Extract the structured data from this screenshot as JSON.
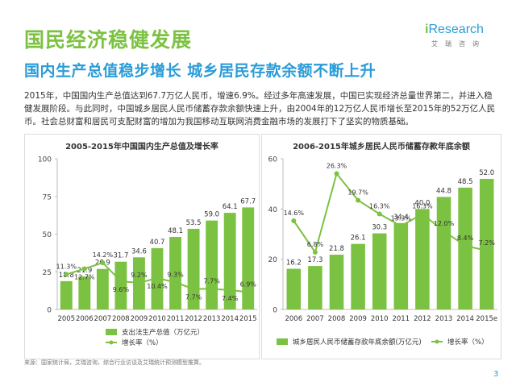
{
  "header": {
    "title": "国民经济稳健发展",
    "subtitle": "国内生产总值稳步增长 城乡居民存款余额不断上升"
  },
  "brand": {
    "logo_text": "iResearch",
    "logo_cn": "艾瑞咨询"
  },
  "intro_text": "2015年，中国国内生产总值达到67.7万亿人民币，增速6.9%。经过多年高速发展，中国已实现经济总量世界第二，并进入稳健发展阶段。与此同时，中国城乡居民人民币储蓄存款余额快速上升，由2004年的12万亿人民币增长至2015年的52万亿人民币。社会总财富和居民可支配财富的增加为我国移动互联网消费金融市场的发展打下了坚实的物质基础。",
  "source_text": "来源：国家统计局，艾瑞咨询，综合行业访谈及艾瑞统计预测模型推算。",
  "page_number": "3",
  "colors": {
    "bar": "#7cc242",
    "line": "#7cc242",
    "title_green": "#7cc242",
    "title_blue": "#2a9cd8"
  },
  "chart_data": [
    {
      "type": "bar",
      "title": "2005-2015年中国国内生产总值及增长率",
      "categories": [
        "2005",
        "2006",
        "2007",
        "2008",
        "2009",
        "2010",
        "2011",
        "2012",
        "2013",
        "2014",
        "2015"
      ],
      "series": [
        {
          "name": "支出法生产总值（万亿元）",
          "type": "bar",
          "axis": "left",
          "values": [
            18.8,
            21.9,
            26.9,
            31.7,
            34.6,
            40.7,
            48.1,
            53.5,
            59.0,
            64.1,
            67.7
          ],
          "labels": [
            "18.8",
            "21.9",
            "26.9",
            "31.7",
            "34.6",
            "40.7",
            "48.1",
            "53.5",
            "59.0",
            "64.1",
            "67.7"
          ]
        },
        {
          "name": "增长率（%）",
          "type": "line",
          "axis": "right",
          "values": [
            11.3,
            12.7,
            14.2,
            9.6,
            9.2,
            10.4,
            9.3,
            7.7,
            7.7,
            7.4,
            6.9
          ],
          "labels": [
            "11.3%",
            "12.7%",
            "14.2%",
            "9.6%",
            "9.2%",
            "10.4%",
            "9.3%",
            "7.7%",
            "7.7%",
            "7.4%",
            "6.9%"
          ]
        }
      ],
      "ylim": [
        0,
        100
      ],
      "yticks": [
        "0",
        "25",
        "50",
        "75",
        "100"
      ],
      "yticks_values": [
        0,
        25,
        50,
        75,
        100
      ]
    },
    {
      "type": "bar",
      "title": "2006-2015年城乡居民人民币储蓄存款年底余额",
      "categories": [
        "2006",
        "2007",
        "2008",
        "2009",
        "2010",
        "2011",
        "2012",
        "2013",
        "2014",
        "2015e"
      ],
      "series": [
        {
          "name": "城乡居民人民币储蓄存款年底余额(万亿元)",
          "type": "bar",
          "axis": "left",
          "values": [
            16.2,
            17.3,
            21.8,
            26.1,
            30.3,
            34.4,
            40.0,
            44.8,
            48.5,
            52.0
          ],
          "labels": [
            "16.2",
            "17.3",
            "21.8",
            "26.1",
            "30.3",
            "34.4",
            "40.0",
            "44.8",
            "48.5",
            "52.0"
          ]
        },
        {
          "name": "增长率（%）",
          "type": "line",
          "axis": "right",
          "values": [
            14.6,
            6.8,
            26.3,
            19.7,
            16.3,
            13.3,
            16.3,
            12.0,
            8.4,
            7.2
          ],
          "labels": [
            "14.6%",
            "6.8%",
            "26.3%",
            "19.7%",
            "16.3%",
            "13.3%",
            "16.3%",
            "12.0%",
            "8.4%",
            "7.2%"
          ]
        }
      ],
      "ylim": [
        0,
        60
      ],
      "yticks": [
        "0",
        "20",
        "40",
        "60"
      ],
      "yticks_values": [
        0,
        20,
        40,
        60
      ]
    }
  ]
}
